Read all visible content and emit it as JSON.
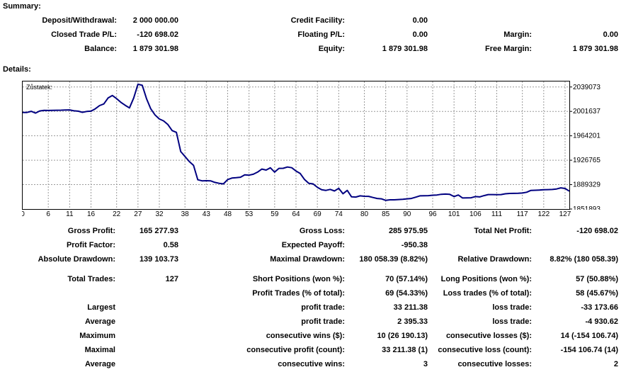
{
  "summary": {
    "title": "Summary:",
    "deposit_label": "Deposit/Withdrawal:",
    "deposit_value": "2 000 000.00",
    "closed_label": "Closed Trade P/L:",
    "closed_value": "-120 698.02",
    "balance_label": "Balance:",
    "balance_value": "1 879 301.98",
    "credit_label": "Credit Facility:",
    "credit_value": "0.00",
    "floating_label": "Floating P/L:",
    "floating_value": "0.00",
    "equity_label": "Equity:",
    "equity_value": "1 879 301.98",
    "margin_label": "Margin:",
    "margin_value": "0.00",
    "free_margin_label": "Free Margin:",
    "free_margin_value": "1 879 301.98"
  },
  "details": {
    "title": "Details:",
    "gross_profit_label": "Gross Profit:",
    "gross_profit_value": "165 277.93",
    "gross_loss_label": "Gross Loss:",
    "gross_loss_value": "285 975.95",
    "total_net_label": "Total Net Profit:",
    "total_net_value": "-120 698.02",
    "profit_factor_label": "Profit Factor:",
    "profit_factor_value": "0.58",
    "expected_payoff_label": "Expected Payoff:",
    "expected_payoff_value": "-950.38",
    "abs_dd_label": "Absolute Drawdown:",
    "abs_dd_value": "139 103.73",
    "max_dd_label": "Maximal Drawdown:",
    "max_dd_value": "180 058.39 (8.82%)",
    "rel_dd_label": "Relative Drawdown:",
    "rel_dd_value": "8.82% (180 058.39)",
    "total_trades_label": "Total Trades:",
    "total_trades_value": "127",
    "short_label": "Short Positions (won %):",
    "short_value": "70 (57.14%)",
    "long_label": "Long Positions (won %):",
    "long_value": "57 (50.88%)",
    "profit_trades_label": "Profit Trades (% of total):",
    "profit_trades_value": "69 (54.33%)",
    "loss_trades_label": "Loss trades (% of total):",
    "loss_trades_value": "58 (45.67%)",
    "largest_label": "Largest",
    "largest_profit_label": "profit trade:",
    "largest_profit_value": "33 211.38",
    "largest_loss_label": "loss trade:",
    "largest_loss_value": "-33 173.66",
    "average_label": "Average",
    "avg_profit_label": "profit trade:",
    "avg_profit_value": "2 395.33",
    "avg_loss_label": "loss trade:",
    "avg_loss_value": "-4 930.62",
    "maximum_label": "Maximum",
    "max_wins_label": "consecutive wins ($):",
    "max_wins_value": "10 (26 190.13)",
    "max_losses_label": "consecutive losses ($):",
    "max_losses_value": "14 (-154 106.74)",
    "maximal_label": "Maximal",
    "maximal_profit_label": "consecutive profit (count):",
    "maximal_profit_value": "33 211.38 (1)",
    "maximal_loss_label": "consecutive loss (count):",
    "maximal_loss_value": "-154 106.74 (14)",
    "average2_label": "Average",
    "avg_wins_label": "consecutive wins:",
    "avg_wins_value": "3",
    "avg_losses_label": "consecutive losses:",
    "avg_losses_value": "2"
  },
  "chart_data": {
    "type": "line",
    "title": "Zůstatek:",
    "line_color": "#000080",
    "grid": true,
    "xlim": [
      0,
      128
    ],
    "ylim": [
      1851893,
      2047500
    ],
    "x_ticks": [
      "0",
      "6",
      "11",
      "16",
      "22",
      "27",
      "32",
      "38",
      "43",
      "48",
      "53",
      "59",
      "64",
      "69",
      "74",
      "80",
      "85",
      "90",
      "96",
      "101",
      "106",
      "111",
      "117",
      "122",
      "127"
    ],
    "y_ticks": [
      "2039073",
      "2001637",
      "1964201",
      "1926765",
      "1889329",
      "1851893"
    ],
    "series": [
      {
        "values": [
          [
            0,
            2000000
          ],
          [
            1,
            2000000
          ],
          [
            2,
            2001700
          ],
          [
            3,
            1999000
          ],
          [
            4,
            2002300
          ],
          [
            5,
            2003200
          ],
          [
            6,
            2003000
          ],
          [
            7,
            2003300
          ],
          [
            8,
            2003400
          ],
          [
            9,
            2003500
          ],
          [
            10,
            2003800
          ],
          [
            11,
            2003900
          ],
          [
            12,
            2002500
          ],
          [
            13,
            2002000
          ],
          [
            14,
            2000200
          ],
          [
            15,
            2001500
          ],
          [
            16,
            2002000
          ],
          [
            17,
            2005500
          ],
          [
            18,
            2010500
          ],
          [
            19,
            2013000
          ],
          [
            20,
            2022200
          ],
          [
            21,
            2026000
          ],
          [
            22,
            2021200
          ],
          [
            23,
            2015600
          ],
          [
            24,
            2011000
          ],
          [
            25,
            2007000
          ],
          [
            26,
            2022200
          ],
          [
            27,
            2043300
          ],
          [
            28,
            2041600
          ],
          [
            29,
            2021200
          ],
          [
            30,
            2005500
          ],
          [
            31,
            1996100
          ],
          [
            32,
            1990000
          ],
          [
            33,
            1987100
          ],
          [
            34,
            1981400
          ],
          [
            35,
            1972200
          ],
          [
            36,
            1969500
          ],
          [
            37,
            1940000
          ],
          [
            38,
            1932500
          ],
          [
            39,
            1924800
          ],
          [
            40,
            1918800
          ],
          [
            41,
            1896800
          ],
          [
            42,
            1895100
          ],
          [
            43,
            1895400
          ],
          [
            44,
            1895100
          ],
          [
            45,
            1892800
          ],
          [
            46,
            1891300
          ],
          [
            47,
            1890500
          ],
          [
            48,
            1897100
          ],
          [
            49,
            1899400
          ],
          [
            50,
            1899900
          ],
          [
            51,
            1900700
          ],
          [
            52,
            1904400
          ],
          [
            53,
            1903800
          ],
          [
            54,
            1905200
          ],
          [
            55,
            1908500
          ],
          [
            56,
            1913200
          ],
          [
            57,
            1911700
          ],
          [
            58,
            1915100
          ],
          [
            59,
            1908500
          ],
          [
            60,
            1914300
          ],
          [
            61,
            1914400
          ],
          [
            62,
            1916300
          ],
          [
            63,
            1915300
          ],
          [
            64,
            1910100
          ],
          [
            65,
            1906300
          ],
          [
            66,
            1897100
          ],
          [
            67,
            1891300
          ],
          [
            68,
            1890500
          ],
          [
            69,
            1885100
          ],
          [
            70,
            1881400
          ],
          [
            71,
            1880500
          ],
          [
            72,
            1882000
          ],
          [
            73,
            1879600
          ],
          [
            74,
            1883600
          ],
          [
            75,
            1875400
          ],
          [
            76,
            1880500
          ],
          [
            77,
            1870600
          ],
          [
            78,
            1870300
          ],
          [
            79,
            1872100
          ],
          [
            80,
            1871400
          ],
          [
            81,
            1871300
          ],
          [
            82,
            1869600
          ],
          [
            83,
            1868100
          ],
          [
            84,
            1867500
          ],
          [
            85,
            1865100
          ],
          [
            86,
            1866000
          ],
          [
            87,
            1866000
          ],
          [
            88,
            1866500
          ],
          [
            89,
            1866800
          ],
          [
            90,
            1867500
          ],
          [
            91,
            1868100
          ],
          [
            92,
            1870000
          ],
          [
            93,
            1872100
          ],
          [
            94,
            1872300
          ],
          [
            95,
            1872400
          ],
          [
            96,
            1873100
          ],
          [
            97,
            1873400
          ],
          [
            98,
            1874500
          ],
          [
            99,
            1874800
          ],
          [
            100,
            1874400
          ],
          [
            101,
            1871000
          ],
          [
            102,
            1873400
          ],
          [
            103,
            1868800
          ],
          [
            104,
            1869000
          ],
          [
            105,
            1869200
          ],
          [
            106,
            1871000
          ],
          [
            107,
            1870500
          ],
          [
            108,
            1872400
          ],
          [
            109,
            1874100
          ],
          [
            110,
            1874100
          ],
          [
            111,
            1873800
          ],
          [
            112,
            1874100
          ],
          [
            113,
            1875300
          ],
          [
            114,
            1875800
          ],
          [
            115,
            1875900
          ],
          [
            116,
            1876000
          ],
          [
            117,
            1876500
          ],
          [
            118,
            1877700
          ],
          [
            119,
            1880500
          ],
          [
            120,
            1880700
          ],
          [
            121,
            1881000
          ],
          [
            122,
            1881500
          ],
          [
            123,
            1881700
          ],
          [
            124,
            1881900
          ],
          [
            125,
            1882600
          ],
          [
            126,
            1884400
          ],
          [
            127,
            1883400
          ],
          [
            128,
            1879300
          ]
        ]
      }
    ]
  }
}
